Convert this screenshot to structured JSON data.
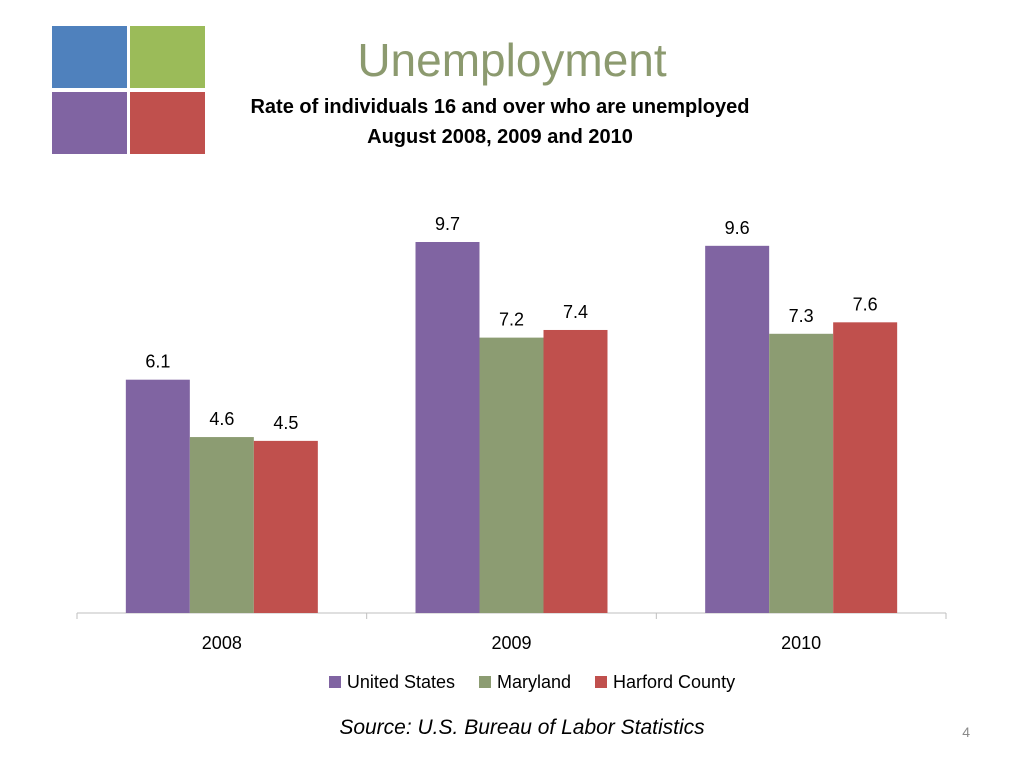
{
  "slide": {
    "title": "Unemployment",
    "subtitle_line1": "Rate of individuals 16 and over who are unemployed",
    "subtitle_line2": "August 2008, 2009 and 2010",
    "source": "Source: U.S. Bureau of Labor Statistics",
    "page_number": "4"
  },
  "logo": {
    "colors": [
      "#4f81bd",
      "#9bbb59",
      "#8064a2",
      "#c0504d"
    ]
  },
  "chart_data": {
    "type": "bar",
    "categories": [
      "2008",
      "2009",
      "2010"
    ],
    "series": [
      {
        "name": "United States",
        "values": [
          6.1,
          9.7,
          9.6
        ],
        "color": "#8064a2"
      },
      {
        "name": "Maryland",
        "values": [
          4.6,
          7.2,
          7.3
        ],
        "color": "#8c9c72"
      },
      {
        "name": "Harford County",
        "values": [
          4.5,
          7.4,
          7.6
        ],
        "color": "#c0504d"
      }
    ],
    "ylim": [
      0,
      10
    ],
    "grid": false,
    "legend_position": "bottom",
    "data_labels": true
  }
}
